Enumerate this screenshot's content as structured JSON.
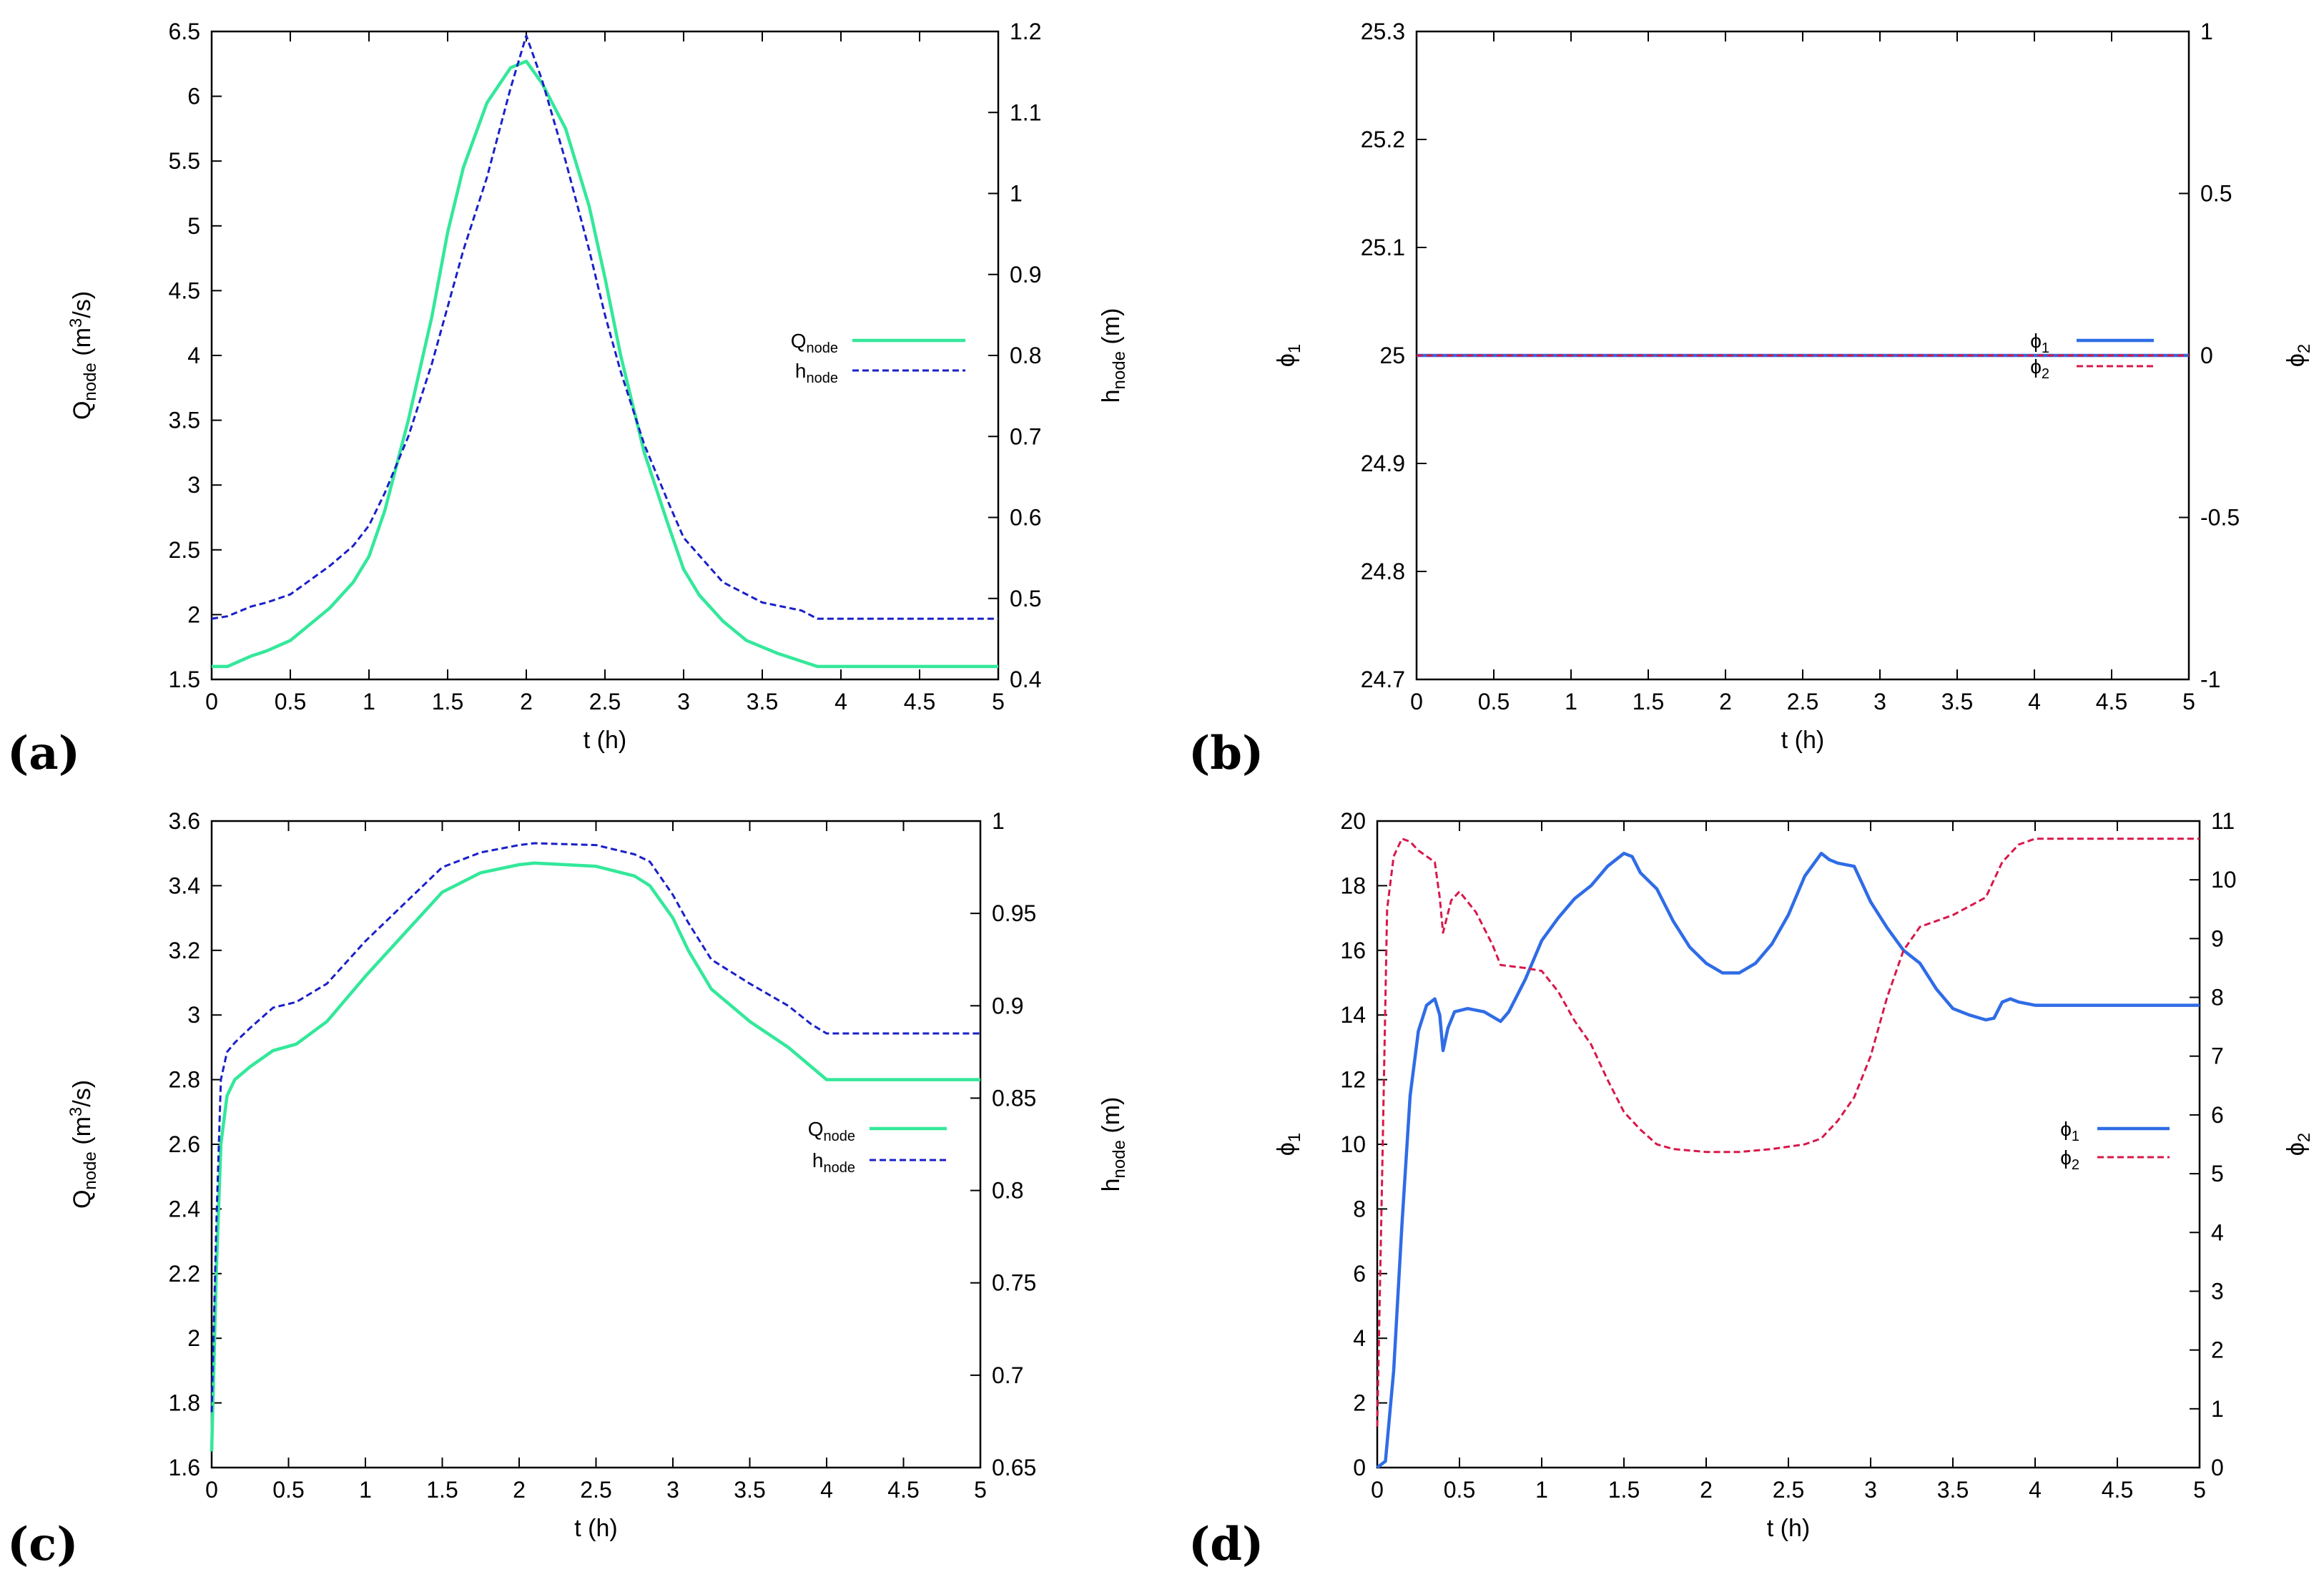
{
  "figure": {
    "panel_labels": [
      "(a)",
      "(b)",
      "(c)",
      "(d)"
    ]
  },
  "chart_data": [
    {
      "type": "line",
      "panel": "(a)",
      "xlabel": "t (h)",
      "ylabel_left": {
        "main": "Q",
        "sub": "node",
        "unit_pre": " (m",
        "sup": "3",
        "unit_post": "/s)"
      },
      "ylabel_right": {
        "main": "h",
        "sub": "node",
        "unit_post": " (m)"
      },
      "xlim": [
        0,
        5
      ],
      "ylim_left": [
        1.5,
        6.5
      ],
      "ylim_right": [
        0.4,
        1.2
      ],
      "xticks": [
        "0",
        "0.5",
        "1",
        "1.5",
        "2",
        "2.5",
        "3",
        "3.5",
        "4",
        "4.5",
        "5"
      ],
      "yticks_left": [
        "1.5",
        "2",
        "2.5",
        "3",
        "3.5",
        "4",
        "4.5",
        "5",
        "5.5",
        "6",
        "6.5"
      ],
      "yticks_right": [
        "0.4",
        "0.5",
        "0.6",
        "0.7",
        "0.8",
        "0.9",
        "1",
        "1.1",
        "1.2"
      ],
      "legend_position": "center-right",
      "series": [
        {
          "name": "Q",
          "name_sub": "node",
          "axis": "left",
          "color": "#33e89a",
          "dash": "solid",
          "x": [
            0,
            0.1,
            0.25,
            0.35,
            0.5,
            0.75,
            0.9,
            1.0,
            1.1,
            1.25,
            1.4,
            1.5,
            1.6,
            1.75,
            1.9,
            2.0,
            2.1,
            2.25,
            2.4,
            2.5,
            2.6,
            2.75,
            2.9,
            3.0,
            3.1,
            3.25,
            3.4,
            3.6,
            3.85,
            5
          ],
          "values": [
            1.6,
            1.6,
            1.68,
            1.72,
            1.8,
            2.05,
            2.25,
            2.45,
            2.8,
            3.5,
            4.3,
            4.95,
            5.45,
            5.95,
            6.22,
            6.27,
            6.1,
            5.75,
            5.15,
            4.6,
            4.0,
            3.25,
            2.7,
            2.35,
            2.15,
            1.95,
            1.8,
            1.7,
            1.6,
            1.6
          ]
        },
        {
          "name": "h",
          "name_sub": "node",
          "axis": "right",
          "color": "#1a20c8",
          "dash": "dashed",
          "x": [
            0,
            0.1,
            0.25,
            0.35,
            0.5,
            0.75,
            0.9,
            1.0,
            1.1,
            1.25,
            1.4,
            1.5,
            1.6,
            1.75,
            1.9,
            2.0,
            2.1,
            2.25,
            2.4,
            2.5,
            2.6,
            2.75,
            2.9,
            3.0,
            3.25,
            3.5,
            3.75,
            3.85,
            5
          ],
          "values": [
            0.475,
            0.478,
            0.49,
            0.495,
            0.505,
            0.54,
            0.565,
            0.59,
            0.63,
            0.7,
            0.79,
            0.86,
            0.93,
            1.02,
            1.13,
            1.195,
            1.14,
            1.04,
            0.93,
            0.85,
            0.78,
            0.69,
            0.62,
            0.575,
            0.52,
            0.495,
            0.485,
            0.475,
            0.475
          ]
        }
      ]
    },
    {
      "type": "line",
      "panel": "(b)",
      "xlabel": "t (h)",
      "ylabel_left": {
        "main": "ϕ",
        "sub": "1"
      },
      "ylabel_right": {
        "main": "ϕ",
        "sub": "2"
      },
      "xlim": [
        0,
        5
      ],
      "ylim_left": [
        24.7,
        25.3
      ],
      "ylim_right": [
        -1,
        1
      ],
      "xticks": [
        "0",
        "0.5",
        "1",
        "1.5",
        "2",
        "2.5",
        "3",
        "3.5",
        "4",
        "4.5",
        "5"
      ],
      "yticks_left": [
        "24.7",
        "24.8",
        "24.9",
        "25",
        "25.1",
        "25.2",
        "25.3"
      ],
      "yticks_right": [
        "-1",
        "-0.5",
        "0",
        "0.5",
        "1"
      ],
      "legend_position": "center-right",
      "series": [
        {
          "name": "ϕ",
          "name_sub": "1",
          "axis": "left",
          "color": "#2f6ce6",
          "dash": "solid",
          "x": [
            0,
            5
          ],
          "values": [
            25,
            25
          ]
        },
        {
          "name": "ϕ",
          "name_sub": "2",
          "axis": "right",
          "color": "#d8184a",
          "dash": "dashed",
          "x": [
            0,
            5
          ],
          "values": [
            0,
            0
          ]
        }
      ]
    },
    {
      "type": "line",
      "panel": "(c)",
      "xlabel": "t (h)",
      "ylabel_left": {
        "main": "Q",
        "sub": "node",
        "unit_pre": " (m",
        "sup": "3",
        "unit_post": "/s)"
      },
      "ylabel_right": {
        "main": "h",
        "sub": "node",
        "unit_post": " (m)"
      },
      "xlim": [
        0,
        5
      ],
      "ylim_left": [
        1.6,
        3.6
      ],
      "ylim_right": [
        0.65,
        1.0
      ],
      "xticks": [
        "0",
        "0.5",
        "1",
        "1.5",
        "2",
        "2.5",
        "3",
        "3.5",
        "4",
        "4.5",
        "5"
      ],
      "yticks_left": [
        "1.6",
        "1.8",
        "2",
        "2.2",
        "2.4",
        "2.6",
        "2.8",
        "3",
        "3.2",
        "3.4",
        "3.6"
      ],
      "yticks_right": [
        "0.65",
        "0.7",
        "0.75",
        "0.8",
        "0.85",
        "0.9",
        "0.95",
        "1"
      ],
      "legend_position": "center-right",
      "series": [
        {
          "name": "Q",
          "name_sub": "node",
          "axis": "left",
          "color": "#33e89a",
          "dash": "solid",
          "x": [
            0,
            0.03,
            0.06,
            0.1,
            0.15,
            0.25,
            0.4,
            0.55,
            0.75,
            1.0,
            1.25,
            1.5,
            1.75,
            2.0,
            2.1,
            2.5,
            2.75,
            2.85,
            3.0,
            3.1,
            3.25,
            3.5,
            3.75,
            3.9,
            4.0,
            5
          ],
          "values": [
            1.65,
            2.2,
            2.6,
            2.75,
            2.8,
            2.84,
            2.89,
            2.91,
            2.98,
            3.12,
            3.25,
            3.38,
            3.44,
            3.465,
            3.47,
            3.46,
            3.43,
            3.4,
            3.3,
            3.2,
            3.08,
            2.98,
            2.9,
            2.84,
            2.8,
            2.8
          ]
        },
        {
          "name": "h",
          "name_sub": "node",
          "axis": "right",
          "color": "#1a20c8",
          "dash": "dashed",
          "x": [
            0,
            0.03,
            0.06,
            0.1,
            0.15,
            0.25,
            0.4,
            0.55,
            0.75,
            1.0,
            1.25,
            1.5,
            1.75,
            2.0,
            2.1,
            2.5,
            2.75,
            2.85,
            3.0,
            3.1,
            3.25,
            3.5,
            3.75,
            3.9,
            4.0,
            5
          ],
          "values": [
            0.68,
            0.78,
            0.86,
            0.875,
            0.88,
            0.888,
            0.899,
            0.902,
            0.912,
            0.935,
            0.955,
            0.975,
            0.983,
            0.987,
            0.988,
            0.987,
            0.982,
            0.978,
            0.96,
            0.945,
            0.925,
            0.912,
            0.9,
            0.89,
            0.885,
            0.885
          ]
        }
      ]
    },
    {
      "type": "line",
      "panel": "(d)",
      "xlabel": "t (h)",
      "ylabel_left": {
        "main": "ϕ",
        "sub": "1"
      },
      "ylabel_right": {
        "main": "ϕ",
        "sub": "2"
      },
      "xlim": [
        0,
        5
      ],
      "ylim_left": [
        0,
        20
      ],
      "ylim_right": [
        0,
        11
      ],
      "xticks": [
        "0",
        "0.5",
        "1",
        "1.5",
        "2",
        "2.5",
        "3",
        "3.5",
        "4",
        "4.5",
        "5"
      ],
      "yticks_left": [
        "0",
        "2",
        "4",
        "6",
        "8",
        "10",
        "12",
        "14",
        "16",
        "18",
        "20"
      ],
      "yticks_right": [
        "0",
        "1",
        "2",
        "3",
        "4",
        "5",
        "6",
        "7",
        "8",
        "9",
        "10",
        "11"
      ],
      "legend_position": "center-right",
      "series": [
        {
          "name": "ϕ",
          "name_sub": "1",
          "axis": "left",
          "color": "#2f6ce6",
          "dash": "solid",
          "x": [
            0,
            0.05,
            0.1,
            0.15,
            0.2,
            0.25,
            0.3,
            0.35,
            0.38,
            0.4,
            0.43,
            0.47,
            0.55,
            0.65,
            0.75,
            0.8,
            0.9,
            1.0,
            1.1,
            1.2,
            1.3,
            1.4,
            1.5,
            1.55,
            1.6,
            1.7,
            1.8,
            1.9,
            2.0,
            2.1,
            2.2,
            2.3,
            2.4,
            2.5,
            2.6,
            2.7,
            2.75,
            2.8,
            2.9,
            3.0,
            3.1,
            3.2,
            3.3,
            3.4,
            3.5,
            3.6,
            3.7,
            3.75,
            3.8,
            3.85,
            3.9,
            4.0,
            5
          ],
          "values": [
            0,
            0.2,
            3,
            7.5,
            11.5,
            13.5,
            14.3,
            14.5,
            14.0,
            12.9,
            13.6,
            14.1,
            14.2,
            14.1,
            13.8,
            14.1,
            15.1,
            16.3,
            17.0,
            17.6,
            18.0,
            18.6,
            19.0,
            18.9,
            18.4,
            17.9,
            16.9,
            16.1,
            15.6,
            15.3,
            15.3,
            15.6,
            16.2,
            17.1,
            18.3,
            19.0,
            18.8,
            18.7,
            18.6,
            17.5,
            16.7,
            16.0,
            15.6,
            14.8,
            14.2,
            14.0,
            13.85,
            13.9,
            14.4,
            14.5,
            14.4,
            14.3,
            14.3
          ]
        },
        {
          "name": "ϕ",
          "name_sub": "2",
          "axis": "right",
          "color": "#d8184a",
          "dash": "dashed",
          "x": [
            0,
            0.03,
            0.06,
            0.1,
            0.15,
            0.2,
            0.25,
            0.3,
            0.35,
            0.38,
            0.4,
            0.45,
            0.5,
            0.6,
            0.7,
            0.75,
            0.9,
            1.0,
            1.1,
            1.2,
            1.3,
            1.4,
            1.5,
            1.6,
            1.7,
            1.8,
            2.0,
            2.2,
            2.4,
            2.6,
            2.7,
            2.8,
            2.9,
            3.0,
            3.1,
            3.2,
            3.3,
            3.5,
            3.7,
            3.8,
            3.9,
            4.0,
            5
          ],
          "values": [
            0.7,
            5.0,
            9.5,
            10.4,
            10.7,
            10.65,
            10.5,
            10.4,
            10.3,
            9.7,
            9.1,
            9.65,
            9.8,
            9.45,
            8.9,
            8.55,
            8.5,
            8.45,
            8.1,
            7.6,
            7.2,
            6.6,
            6.05,
            5.75,
            5.5,
            5.42,
            5.37,
            5.37,
            5.42,
            5.5,
            5.6,
            5.9,
            6.3,
            7.0,
            8.0,
            8.8,
            9.2,
            9.4,
            9.7,
            10.3,
            10.6,
            10.7,
            10.7
          ]
        }
      ]
    }
  ]
}
